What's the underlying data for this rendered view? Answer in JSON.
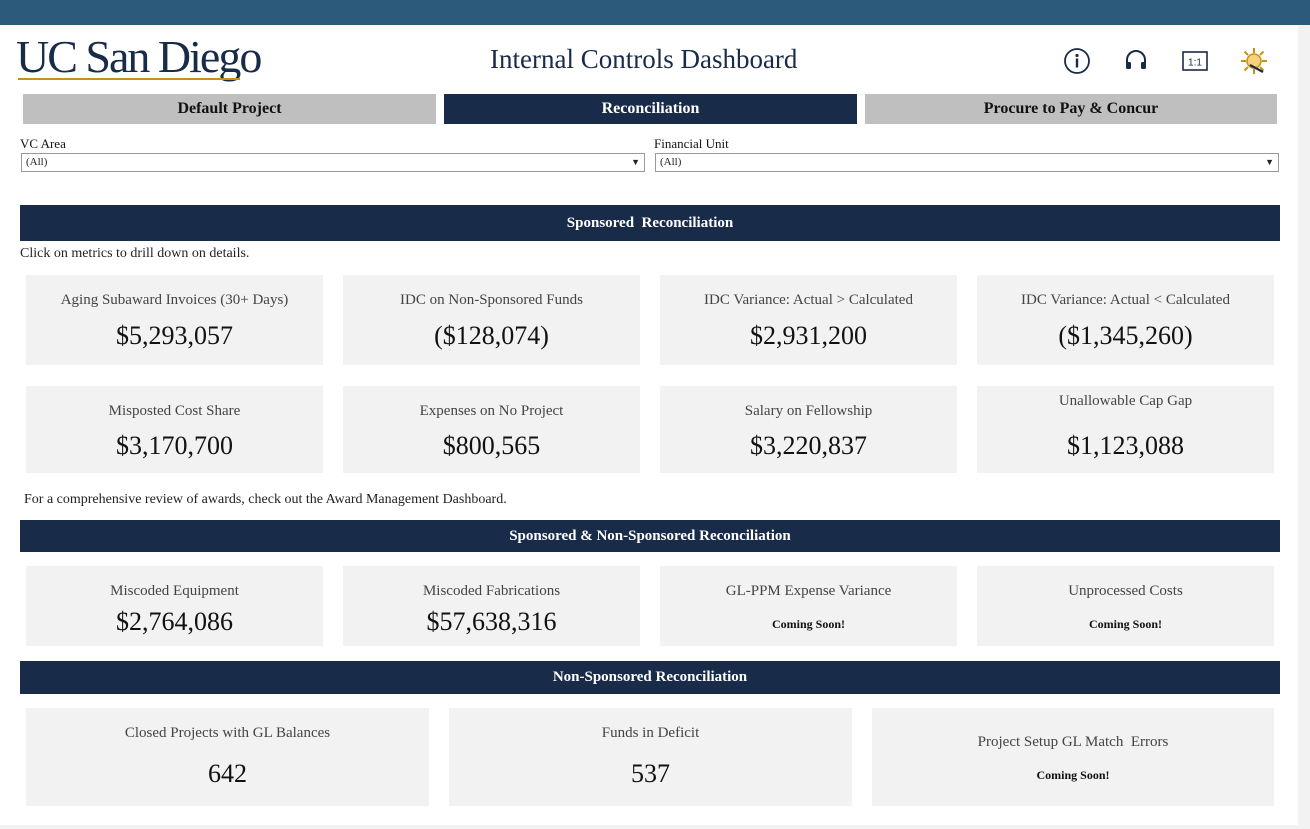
{
  "header": {
    "logo_text": "UC San Diego",
    "title": "Internal Controls Dashboard",
    "icons": [
      "info-icon",
      "headset-icon",
      "actual-size-icon",
      "settings-icon"
    ],
    "actual_size_label": "1:1"
  },
  "tabs": [
    {
      "label": "Default Project",
      "active": false
    },
    {
      "label": "Reconciliation",
      "active": true
    },
    {
      "label": "Procure to Pay & Concur",
      "active": false
    }
  ],
  "filters": {
    "vc_area": {
      "label": "VC Area",
      "value": "(All)"
    },
    "financial_unit": {
      "label": "Financial Unit",
      "value": "(All)"
    }
  },
  "sponsored": {
    "title": "Sponsored  Reconciliation",
    "instruction": "Click on metrics to drill down on details.",
    "metrics": [
      {
        "label": "Aging Subaward Invoices (30+ Days)",
        "value": "$5,293,057"
      },
      {
        "label": "IDC on Non-Sponsored Funds",
        "value": "($128,074)"
      },
      {
        "label": "IDC Variance: Actual > Calculated",
        "value": "$2,931,200"
      },
      {
        "label": "IDC Variance: Actual < Calculated",
        "value": "($1,345,260)"
      },
      {
        "label": "Misposted Cost Share",
        "value": "$3,170,700"
      },
      {
        "label": "Expenses on No Project",
        "value": "$800,565"
      },
      {
        "label": "Salary on Fellowship",
        "value": "$3,220,837"
      },
      {
        "label": "Unallowable Cap Gap",
        "value": "$1,123,088"
      }
    ],
    "footer_note": "For a comprehensive review of awards, check out the Award Management Dashboard."
  },
  "mixed": {
    "title": "Sponsored & Non-Sponsored Reconciliation",
    "metrics": [
      {
        "label": "Miscoded Equipment",
        "value": "$2,764,086"
      },
      {
        "label": "Miscoded Fabrications",
        "value": "$57,638,316"
      },
      {
        "label": "GL-PPM Expense Variance",
        "value": "Coming Soon!"
      },
      {
        "label": "Unprocessed Costs",
        "value": "Coming Soon!"
      }
    ]
  },
  "non_sponsored": {
    "title": "Non-Sponsored Reconciliation",
    "metrics": [
      {
        "label": "Closed Projects with GL Balances",
        "value": "642"
      },
      {
        "label": "Funds in Deficit",
        "value": "537"
      },
      {
        "label": "Project Setup GL Match  Errors",
        "value": "Coming Soon!"
      }
    ]
  },
  "colors": {
    "navy": "#182b49",
    "topbar": "#2c5a7a",
    "gold": "#c69214",
    "card_bg": "#f2f2f2",
    "tab_inactive": "#bfbfbf"
  }
}
